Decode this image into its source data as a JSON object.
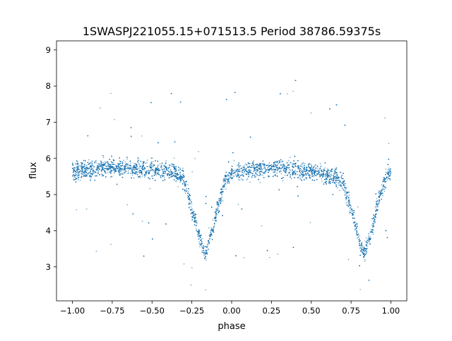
{
  "chart_data": {
    "type": "scatter",
    "title": "1SWASPJ221055.15+071513.5 Period 38786.59375s",
    "xlabel": "phase",
    "ylabel": "flux",
    "xlim": [
      -1.1,
      1.1
    ],
    "ylim": [
      2.06,
      9.25
    ],
    "xticks": [
      -1.0,
      -0.75,
      -0.5,
      -0.25,
      0.0,
      0.25,
      0.5,
      0.75,
      1.0
    ],
    "xtick_labels": [
      "−1.00",
      "−0.75",
      "−0.50",
      "−0.25",
      "0.00",
      "0.25",
      "0.50",
      "0.75",
      "1.00"
    ],
    "yticks": [
      3,
      4,
      5,
      6,
      7,
      8,
      9
    ],
    "ytick_labels": [
      "3",
      "4",
      "5",
      "6",
      "7",
      "8",
      "9"
    ],
    "grid": false,
    "color": "#1f77b4",
    "series_trend": {
      "x": [
        -1.0,
        -0.75,
        -0.5,
        -0.35,
        -0.3,
        -0.25,
        -0.2,
        -0.17,
        -0.12,
        -0.08,
        -0.03,
        0.0,
        0.25,
        0.5,
        0.65,
        0.7,
        0.75,
        0.8,
        0.83,
        0.88,
        0.92,
        0.97,
        1.0
      ],
      "y": [
        5.65,
        5.75,
        5.7,
        5.6,
        5.4,
        4.6,
        3.8,
        3.35,
        4.0,
        4.8,
        5.5,
        5.6,
        5.75,
        5.65,
        5.5,
        5.3,
        4.6,
        3.8,
        3.35,
        4.0,
        4.8,
        5.5,
        5.6
      ]
    }
  }
}
